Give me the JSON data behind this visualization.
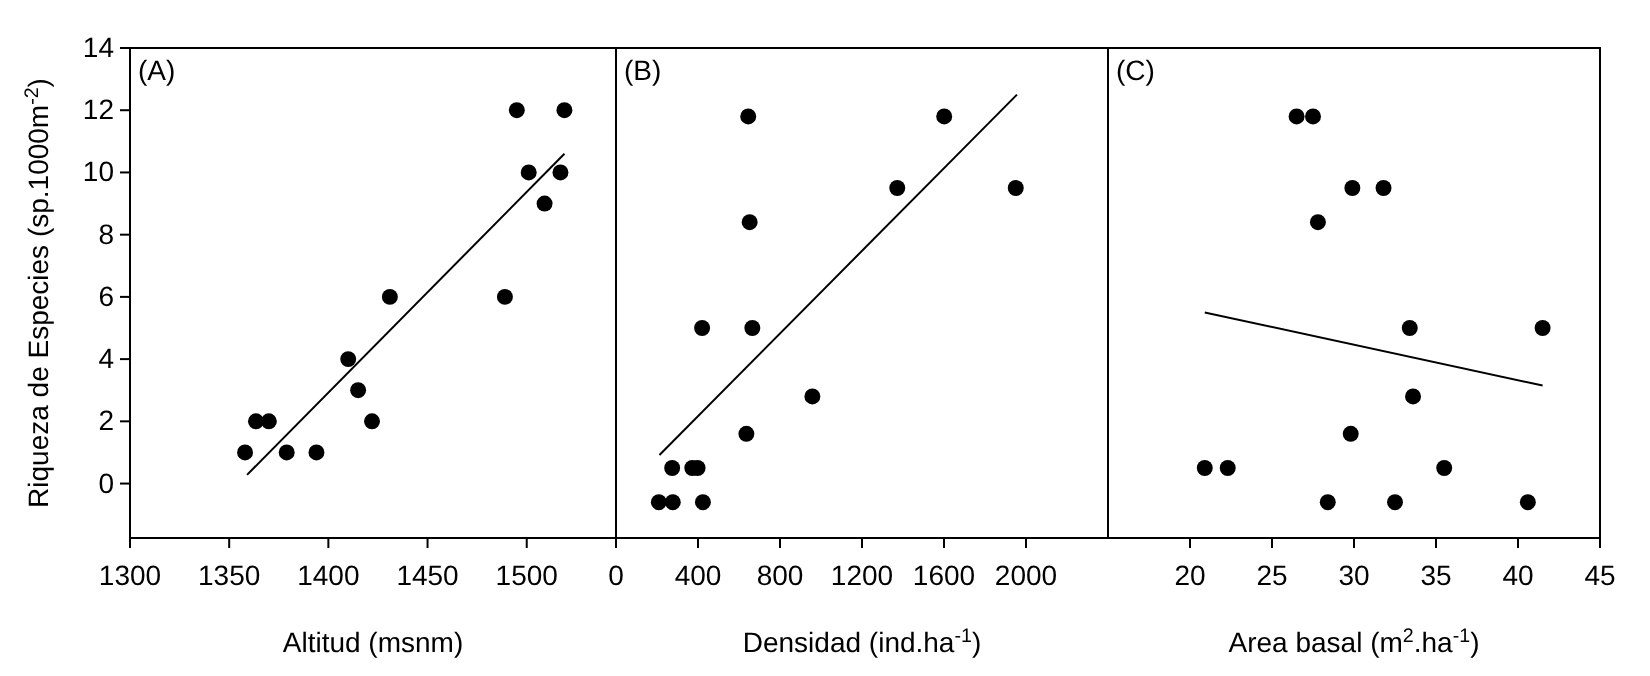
{
  "chart_data": [
    {
      "type": "scatter",
      "xlabel": "Altitud (msnm)",
      "ylabel": "Riqueza de Especies (sp.1000m$^{-2}$)",
      "annotations": [
        "(A)"
      ],
      "xlim": [
        1300,
        1545
      ],
      "xticks": [
        1300,
        1350,
        1400,
        1450,
        1500
      ],
      "ylim": [
        -1.75,
        14
      ],
      "yticks": [
        0,
        2,
        4,
        6,
        8,
        10,
        12,
        14
      ],
      "series": [
        {
          "marker": "circle",
          "color": "#000000",
          "x": [
            1358,
            1363.5,
            1370,
            1379,
            1394,
            1410,
            1415,
            1422,
            1431,
            1489,
            1495,
            1501,
            1509,
            1517,
            1519
          ],
          "values": [
            1,
            2,
            2,
            1,
            1,
            4,
            3,
            2,
            6,
            6,
            12,
            10,
            9,
            10,
            12
          ]
        },
        {
          "type": "line",
          "marker": "none",
          "color": "#000000",
          "x": [
            1359,
            1519
          ],
          "values": [
            0.28,
            10.6
          ]
        }
      ]
    },
    {
      "type": "scatter",
      "xlabel": "Densidad (ind.ha$^{-1}$)",
      "annotations": [
        "(B)"
      ],
      "xlim": [
        0,
        2400
      ],
      "xticks": [
        0,
        400,
        800,
        1200,
        1600,
        2000
      ],
      "ylim": [
        -1.75,
        14
      ],
      "tick_labels": "x",
      "series": [
        {
          "marker": "circle",
          "color": "#000000",
          "x": [
            645,
            1601,
            1372,
            1950,
            652,
            420,
            665,
            958,
            636,
            274,
            372,
            398,
            209,
            277,
            424
          ],
          "values": [
            11.8,
            11.8,
            9.5,
            9.5,
            8.4,
            5,
            5,
            2.8,
            1.6,
            0.5,
            0.5,
            0.5,
            -0.6,
            -0.6,
            -0.6
          ]
        },
        {
          "type": "line",
          "marker": "none",
          "color": "#000000",
          "x": [
            212,
            1956
          ],
          "values": [
            0.92,
            12.5
          ]
        }
      ]
    },
    {
      "type": "scatter",
      "xlabel": "Area basal (m$^{2}$.ha$^{-1}$)",
      "annotations": [
        "(C)"
      ],
      "xlim": [
        15,
        45
      ],
      "xticks": [
        20,
        25,
        30,
        35,
        40,
        45
      ],
      "ylim": [
        -1.75,
        14
      ],
      "tick_labels": "x",
      "series": [
        {
          "marker": "circle",
          "color": "#000000",
          "x": [
            26.5,
            27.5,
            29.9,
            31.8,
            27.8,
            33.4,
            41.5,
            33.6,
            29.8,
            20.9,
            22.3,
            35.5,
            28.4,
            32.5,
            40.6
          ],
          "values": [
            11.8,
            11.8,
            9.5,
            9.5,
            8.4,
            5,
            5,
            2.8,
            1.6,
            0.5,
            0.5,
            0.5,
            -0.6,
            -0.6,
            -0.6
          ]
        },
        {
          "type": "line",
          "marker": "none",
          "color": "#000000",
          "x": [
            20.9,
            41.5
          ],
          "values": [
            5.5,
            3.15
          ]
        }
      ]
    }
  ]
}
